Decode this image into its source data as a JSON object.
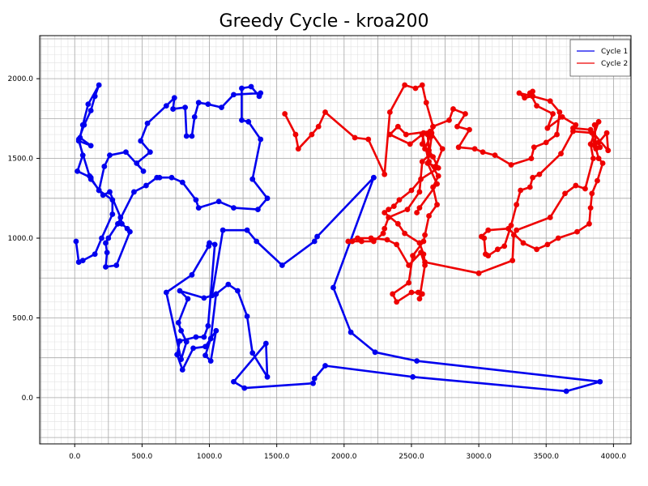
{
  "chart_data": {
    "type": "line",
    "title": "Greedy Cycle - kroa200",
    "xlabel": "",
    "ylabel": "",
    "xlim": [
      -260,
      4130
    ],
    "ylim": [
      -290,
      2270
    ],
    "xticks": [
      0,
      500,
      1000,
      1500,
      2000,
      2500,
      3000,
      3500,
      4000
    ],
    "xtick_labels": [
      "0.0",
      "500.0",
      "1000.0",
      "1500.0",
      "2000.0",
      "2500.0",
      "3000.0",
      "3500.0",
      "4000.0"
    ],
    "yticks": [
      0,
      500,
      1000,
      1500,
      2000
    ],
    "ytick_labels": [
      "0.0",
      "500.0",
      "1000.0",
      "1500.0",
      "2000.0"
    ],
    "grid": true,
    "minor_grid": true,
    "legend_position": "top-right",
    "colors": {
      "Cycle 1": "#0000ee",
      "Cycle 2": "#ee0000"
    },
    "series": [
      {
        "name": "Cycle 1",
        "x": [
          2220,
          1920,
          2050,
          2230,
          2540,
          3900,
          3650,
          2510,
          1860,
          1780,
          1770,
          1260,
          1180,
          1420,
          1430,
          1320,
          1280,
          1210,
          1140,
          1050,
          1010,
          970,
          1010,
          1050,
          970,
          880,
          800,
          760,
          780,
          900,
          960,
          990,
          1040,
          1000,
          995,
          870,
          680,
          790,
          830,
          790,
          770,
          840,
          780,
          960,
          1020,
          1100,
          1280,
          1350,
          1540,
          1780,
          1800,
          2220
        ],
        "y": [
          1380,
          690,
          410,
          285,
          230,
          100,
          40,
          130,
          200,
          120,
          90,
          60,
          100,
          340,
          130,
          280,
          510,
          670,
          710,
          650,
          370,
          265,
          230,
          420,
          320,
          310,
          175,
          270,
          355,
          380,
          380,
          450,
          960,
          970,
          950,
          770,
          660,
          240,
          350,
          420,
          470,
          620,
          670,
          625,
          640,
          1050,
          1050,
          980,
          830,
          980,
          1010,
          1380
        ],
        "size": 100,
        "segments": [
          [
            0,
            1
          ],
          [
            1,
            2
          ],
          [
            2,
            3
          ],
          [
            3,
            4
          ],
          [
            4,
            5
          ],
          [
            5,
            6
          ],
          [
            6,
            7
          ],
          [
            7,
            8
          ],
          [
            8,
            9
          ],
          [
            9,
            10
          ],
          [
            10,
            11
          ],
          [
            11,
            12
          ],
          [
            12,
            13
          ],
          [
            13,
            14
          ],
          [
            14,
            15
          ],
          [
            15,
            16
          ],
          [
            16,
            17
          ],
          [
            17,
            18
          ],
          [
            18,
            19
          ],
          [
            19,
            20
          ],
          [
            20,
            21
          ],
          [
            21,
            22
          ],
          [
            22,
            23
          ],
          [
            23,
            24
          ],
          [
            24,
            25
          ],
          [
            25,
            26
          ],
          [
            26,
            27
          ],
          [
            27,
            28
          ],
          [
            28,
            29
          ],
          [
            29,
            30
          ],
          [
            30,
            31
          ],
          [
            31,
            32
          ],
          [
            32,
            33
          ],
          [
            33,
            34
          ],
          [
            34,
            35
          ],
          [
            35,
            36
          ],
          [
            36,
            37
          ],
          [
            37,
            38
          ],
          [
            38,
            39
          ],
          [
            39,
            40
          ],
          [
            40,
            41
          ],
          [
            41,
            42
          ],
          [
            42,
            43
          ],
          [
            43,
            44
          ],
          [
            44,
            45
          ],
          [
            45,
            46
          ],
          [
            46,
            47
          ],
          [
            47,
            48
          ],
          [
            48,
            49
          ],
          [
            49,
            50
          ],
          [
            50,
            51
          ]
        ]
      },
      {
        "name": "Cycle 1",
        "x": [
          10,
          30,
          60,
          150,
          200,
          280,
          280,
          180,
          110,
          30,
          120,
          40,
          60,
          100,
          180,
          150,
          120,
          70,
          30,
          60,
          20,
          120,
          120,
          210,
          260,
          340,
          350,
          390,
          410,
          310,
          230,
          240,
          230,
          250,
          320,
          440,
          530,
          610,
          630,
          720,
          800,
          900,
          920,
          1070,
          1180,
          1360,
          1430,
          1320,
          1380,
          1290,
          1240,
          1240,
          1310,
          1370,
          1380,
          1180,
          1090,
          990,
          920,
          890,
          870,
          830,
          820,
          730,
          740,
          680,
          540,
          490,
          560,
          460,
          510,
          380,
          260,
          220,
          180
        ],
        "y": [
          980,
          850,
          860,
          900,
          1000,
          1150,
          1240,
          1300,
          1390,
          1610,
          1580,
          1630,
          1710,
          1840,
          1960,
          1890,
          1800,
          1710,
          1620,
          1520,
          1420,
          1380,
          1370,
          1270,
          1290,
          1130,
          1090,
          1060,
          1040,
          830,
          820,
          910,
          970,
          1000,
          1090,
          1290,
          1330,
          1380,
          1380,
          1380,
          1350,
          1240,
          1190,
          1230,
          1190,
          1180,
          1250,
          1370,
          1620,
          1730,
          1740,
          1940,
          1950,
          1890,
          1910,
          1900,
          1820,
          1840,
          1850,
          1760,
          1640,
          1640,
          1820,
          1810,
          1880,
          1830,
          1720,
          1610,
          1540,
          1470,
          1420,
          1540,
          1520,
          1450,
          1300
        ],
        "size": 100
      },
      {
        "name": "Cycle 2",
        "x": [
          1560,
          1640,
          1660,
          1760,
          1810,
          1860,
          2080,
          2180,
          2300,
          2340,
          2450,
          2530,
          2580,
          2610,
          2660,
          2650,
          2630,
          2580,
          2560,
          2470,
          2330,
          2300,
          2290,
          2220,
          2130,
          2060,
          2030,
          2100,
          2200,
          2320,
          2390,
          2480,
          2570,
          2600,
          2560,
          2580,
          2550,
          2500,
          2390,
          2360,
          2480,
          2510,
          2590,
          2600,
          2630,
          2690,
          2660,
          2700,
          2630,
          2580,
          2490,
          2340,
          2400,
          2460,
          2640,
          2730,
          2680,
          2620,
          2690,
          2560,
          2540
        ],
        "y": [
          1780,
          1650,
          1560,
          1650,
          1700,
          1790,
          1630,
          1620,
          1400,
          1790,
          1960,
          1940,
          1960,
          1850,
          1700,
          1640,
          1520,
          1480,
          1290,
          1180,
          1130,
          1060,
          1030,
          980,
          980,
          980,
          980,
          1000,
          1000,
          990,
          960,
          830,
          910,
          830,
          620,
          650,
          660,
          660,
          600,
          650,
          720,
          890,
          980,
          1020,
          1140,
          1210,
          1320,
          1390,
          1480,
          1650,
          1590,
          1650,
          1700,
          1650,
          1670,
          1560,
          1450,
          1470,
          1340,
          1190,
          1160
        ],
        "size": 100
      },
      {
        "name": "Cycle 2",
        "x": [
          3000,
          3250,
          3260,
          3280,
          3530,
          3640,
          3720,
          3790,
          3850,
          3830,
          3890,
          3860,
          3870,
          3890,
          3920,
          3880,
          3840,
          3830,
          3820,
          3730,
          3590,
          3510,
          3430,
          3330,
          3220,
          3070,
          3020,
          3040,
          3050,
          3070,
          3140,
          3190,
          3240,
          3280,
          3310,
          3380,
          3400,
          3450,
          3610,
          3700,
          3840,
          3860,
          3900,
          3890,
          3950,
          3960,
          3830,
          3700,
          3720,
          3620,
          3510,
          3550,
          3430,
          3380,
          3400,
          3400,
          3340,
          3300,
          3400,
          3530,
          3600,
          3580,
          3500,
          3410,
          3390,
          3240,
          3120,
          3030,
          2970,
          2850,
          2930,
          2840,
          2900,
          2810,
          2780,
          2660,
          2650,
          2600,
          2580,
          2590,
          2620,
          2630,
          2660,
          2700,
          2570,
          2500,
          2410,
          2370,
          2330,
          2300,
          2400,
          2450,
          2560,
          2590,
          2600,
          3000
        ],
        "y": [
          780,
          860,
          1020,
          1050,
          1130,
          1280,
          1330,
          1310,
          1500,
          1590,
          1730,
          1710,
          1560,
          1500,
          1470,
          1360,
          1280,
          1190,
          1090,
          1040,
          1000,
          960,
          930,
          970,
          1060,
          1050,
          1010,
          1000,
          900,
          890,
          930,
          950,
          1080,
          1210,
          1300,
          1320,
          1380,
          1400,
          1530,
          1670,
          1660,
          1580,
          1570,
          1600,
          1660,
          1550,
          1680,
          1690,
          1710,
          1760,
          1690,
          1780,
          1830,
          1910,
          1920,
          1890,
          1880,
          1910,
          1890,
          1860,
          1790,
          1650,
          1600,
          1570,
          1500,
          1460,
          1520,
          1540,
          1560,
          1570,
          1680,
          1700,
          1780,
          1810,
          1740,
          1700,
          1660,
          1560,
          1590,
          1660,
          1650,
          1550,
          1510,
          1440,
          1370,
          1300,
          1240,
          1200,
          1180,
          1160,
          1090,
          1030,
          970,
          900,
          850,
          780
        ],
        "size": 100
      }
    ]
  },
  "legend": {
    "items": [
      {
        "label": "Cycle 1",
        "color": "#0000ee"
      },
      {
        "label": "Cycle 2",
        "color": "#ee0000"
      }
    ]
  }
}
